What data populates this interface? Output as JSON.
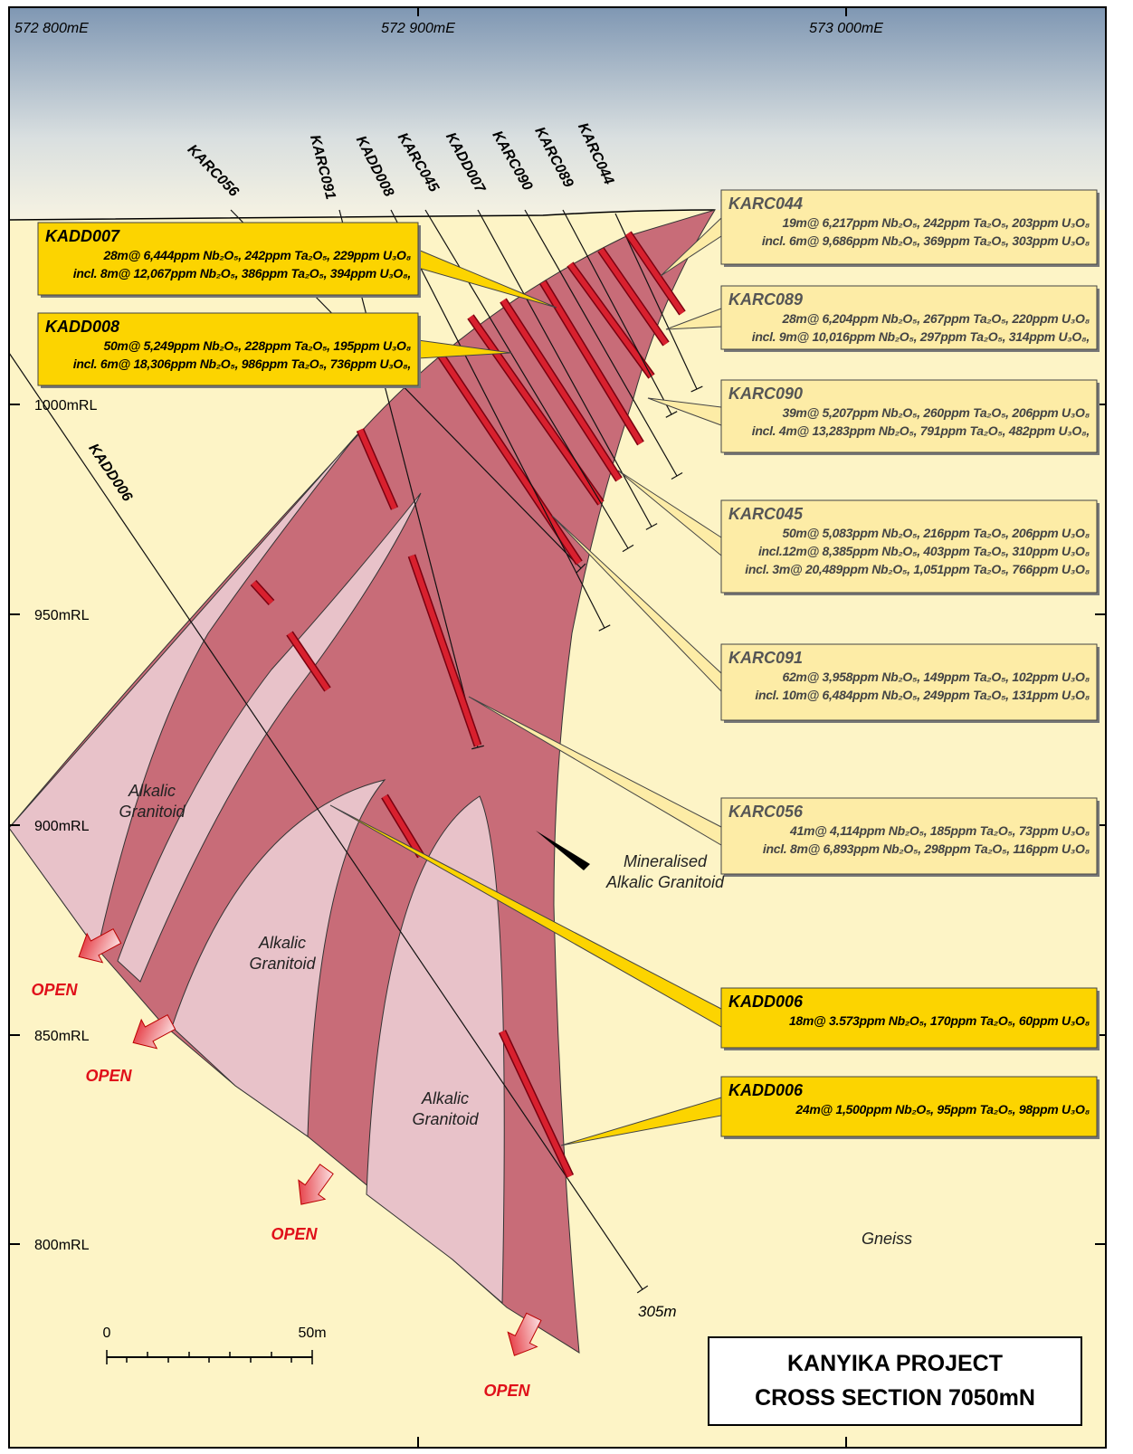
{
  "eastings": [
    "572 800mE",
    "572 900mE",
    "573 000mE"
  ],
  "rl": [
    "1000mRL",
    "950mRL",
    "900mRL",
    "850mRL",
    "800mRL"
  ],
  "holes": [
    "KARC056",
    "KARC091",
    "KADD008",
    "KARC045",
    "KADD007",
    "KARC090",
    "KARC089",
    "KARC044",
    "KADD006"
  ],
  "depth": "305m",
  "callouts": [
    {
      "title": "KADD007",
      "lines": [
        "28m@ 6,444ppm Nb₂O₅, 242ppm Ta₂O₅, 229ppm U₃O₈",
        "incl. 8m@ 12,067ppm Nb₂O₅, 386ppm Ta₂O₅, 394ppm U₃O₈,"
      ]
    },
    {
      "title": "KADD008",
      "lines": [
        "50m@ 5,249ppm Nb₂O₅, 228ppm Ta₂O₅, 195ppm U₃O₈",
        "incl. 6m@ 18,306ppm Nb₂O₅, 986ppm Ta₂O₅, 736ppm U₃O₈,"
      ]
    },
    {
      "title": "KARC044",
      "lines": [
        "19m@ 6,217ppm Nb₂O₅, 242ppm Ta₂O₅, 203ppm U₃O₈",
        "incl. 6m@ 9,686ppm Nb₂O₅, 369ppm Ta₂O₅, 303ppm U₃O₈"
      ]
    },
    {
      "title": "KARC089",
      "lines": [
        "28m@ 6,204ppm Nb₂O₅, 267ppm Ta₂O₅, 220ppm U₃O₈",
        "incl. 9m@ 10,016ppm Nb₂O₅, 297ppm Ta₂O₅, 314ppm U₃O₈,"
      ]
    },
    {
      "title": "KARC090",
      "lines": [
        "39m@ 5,207ppm Nb₂O₅, 260ppm Ta₂O₅, 206ppm U₃O₈",
        "incl. 4m@ 13,283ppm Nb₂O₅, 791ppm Ta₂O₅, 482ppm U₃O₈,"
      ]
    },
    {
      "title": "KARC045",
      "lines": [
        "50m@ 5,083ppm Nb₂O₅, 216ppm Ta₂O₅, 206ppm U₃O₈",
        "incl.12m@ 8,385ppm Nb₂O₅, 403ppm Ta₂O₅, 310ppm U₃O₈",
        "incl. 3m@ 20,489ppm Nb₂O₅, 1,051ppm Ta₂O₅, 766ppm U₃O₈"
      ]
    },
    {
      "title": "KARC091",
      "lines": [
        "62m@ 3,958ppm Nb₂O₅, 149ppm Ta₂O₅, 102ppm U₃O₈",
        "incl. 10m@ 6,484ppm Nb₂O₅, 249ppm Ta₂O₅, 131ppm U₃O₈"
      ]
    },
    {
      "title": "KARC056",
      "lines": [
        "41m@ 4,114ppm Nb₂O₅, 185ppm Ta₂O₅, 73ppm U₃O₈",
        "incl. 8m@ 6,893ppm Nb₂O₅, 298ppm Ta₂O₅, 116ppm U₃O₈"
      ]
    },
    {
      "title": "KADD006",
      "lines": [
        "18m@ 3.573ppm Nb₂O₅, 170ppm Ta₂O₅, 60ppm U₃O₈"
      ]
    },
    {
      "title": "KADD006",
      "lines": [
        "24m@ 1,500ppm Nb₂O₅, 95ppm Ta₂O₅, 98ppm U₃O₈"
      ]
    }
  ],
  "rocks": [
    [
      "Alkalic",
      "Granitoid"
    ],
    [
      "Alkalic",
      "Granitoid"
    ],
    [
      "Alkalic",
      "Granitoid"
    ],
    [
      "Mineralised",
      "Alkalic Granitoid"
    ],
    [
      "Gneiss"
    ]
  ],
  "open": [
    "OPEN",
    "OPEN",
    "OPEN",
    "OPEN"
  ],
  "scale": {
    "start": "0",
    "end": "50m"
  },
  "title": [
    "KANYIKA PROJECT",
    "CROSS SECTION 7050mN"
  ]
}
